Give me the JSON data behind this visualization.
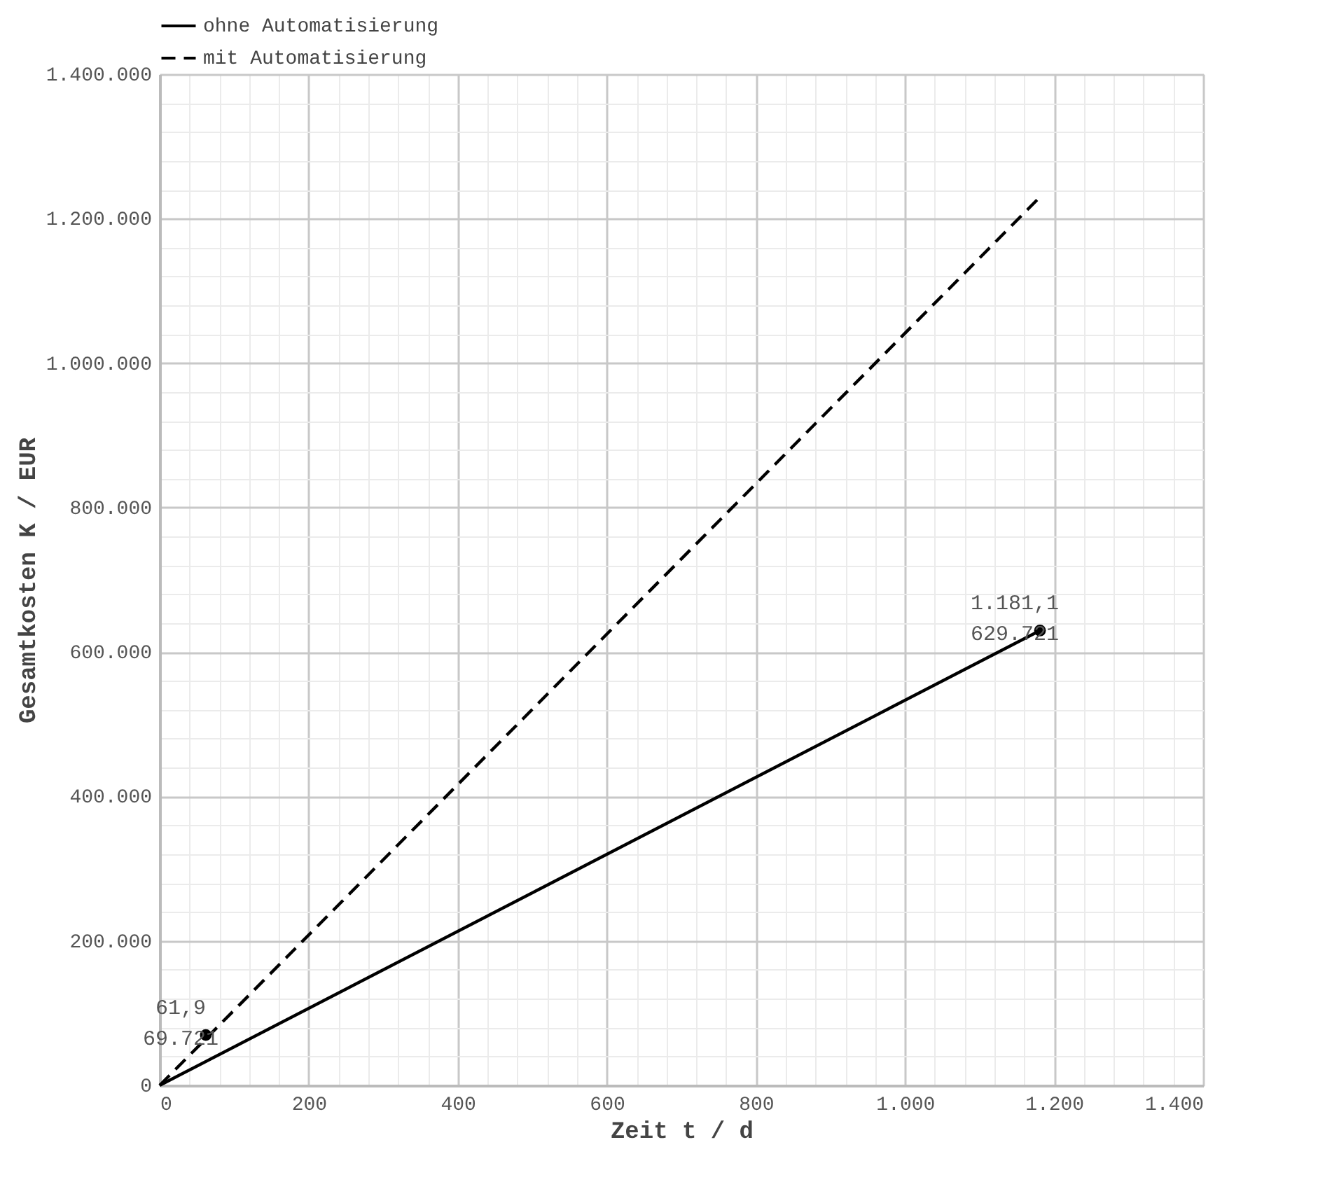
{
  "chart_data": {
    "type": "line",
    "xlabel": "Zeit t / d",
    "ylabel": "Gesamtkosten K / EUR",
    "series": [
      {
        "name": "ohne Automatisierung",
        "color": "#000000",
        "line_style": "solid",
        "x": [
          0,
          1181.1
        ],
        "values": [
          0,
          629721
        ]
      },
      {
        "name": "mit Automatisierung",
        "color": "#000000",
        "line_style": "dashed",
        "x": [
          0,
          1181.1
        ],
        "values": [
          0,
          1230000
        ]
      },
      {
        "type": "scatter",
        "color": "#000000",
        "marker": "circle",
        "x": [
          61.9,
          1181.1
        ],
        "values": [
          69721,
          629721
        ]
      }
    ],
    "annotations": [
      {
        "text": "61,9\n69.721",
        "x": 61.9,
        "y": 69721
      },
      {
        "text": "1.181,1\n629.721",
        "x": 1181.1,
        "y": 629721
      }
    ],
    "xlim": [
      0,
      1400
    ],
    "ylim": [
      0,
      1400000
    ],
    "xticks": [
      {
        "value": 0,
        "label": "0"
      },
      {
        "value": 40,
        "label": null
      },
      {
        "value": 80,
        "label": null
      },
      {
        "value": 120,
        "label": null
      },
      {
        "value": 160,
        "label": null
      },
      {
        "value": 200,
        "label": "200"
      },
      {
        "value": 240,
        "label": null
      },
      {
        "value": 280,
        "label": null
      },
      {
        "value": 320,
        "label": null
      },
      {
        "value": 360,
        "label": null
      },
      {
        "value": 400,
        "label": "400"
      },
      {
        "value": 440,
        "label": null
      },
      {
        "value": 480,
        "label": null
      },
      {
        "value": 520,
        "label": null
      },
      {
        "value": 560,
        "label": null
      },
      {
        "value": 600,
        "label": "600"
      },
      {
        "value": 640,
        "label": null
      },
      {
        "value": 680,
        "label": null
      },
      {
        "value": 720,
        "label": null
      },
      {
        "value": 760,
        "label": null
      },
      {
        "value": 800,
        "label": "800"
      },
      {
        "value": 840,
        "label": null
      },
      {
        "value": 880,
        "label": null
      },
      {
        "value": 920,
        "label": null
      },
      {
        "value": 960,
        "label": null
      },
      {
        "value": 1000,
        "label": "1.000"
      },
      {
        "value": 1040,
        "label": null
      },
      {
        "value": 1080,
        "label": null
      },
      {
        "value": 1120,
        "label": null
      },
      {
        "value": 1160,
        "label": null
      },
      {
        "value": 1200,
        "label": "1.200"
      },
      {
        "value": 1240,
        "label": null
      },
      {
        "value": 1280,
        "label": null
      },
      {
        "value": 1320,
        "label": null
      },
      {
        "value": 1360,
        "label": null
      },
      {
        "value": 1400,
        "label": "1.400"
      }
    ],
    "yticks": [
      {
        "value": 0,
        "label": "0"
      },
      {
        "value": 40000,
        "label": null
      },
      {
        "value": 80000,
        "label": null
      },
      {
        "value": 120000,
        "label": null
      },
      {
        "value": 160000,
        "label": null
      },
      {
        "value": 200000,
        "label": "200.000"
      },
      {
        "value": 240000,
        "label": null
      },
      {
        "value": 280000,
        "label": null
      },
      {
        "value": 320000,
        "label": null
      },
      {
        "value": 360000,
        "label": null
      },
      {
        "value": 400000,
        "label": "400.000"
      },
      {
        "value": 440000,
        "label": null
      },
      {
        "value": 480000,
        "label": null
      },
      {
        "value": 520000,
        "label": null
      },
      {
        "value": 560000,
        "label": null
      },
      {
        "value": 600000,
        "label": "600.000"
      },
      {
        "value": 640000,
        "label": null
      },
      {
        "value": 680000,
        "label": null
      },
      {
        "value": 720000,
        "label": null
      },
      {
        "value": 760000,
        "label": null
      },
      {
        "value": 800000,
        "label": "800.000"
      },
      {
        "value": 840000,
        "label": null
      },
      {
        "value": 880000,
        "label": null
      },
      {
        "value": 920000,
        "label": null
      },
      {
        "value": 960000,
        "label": null
      },
      {
        "value": 1000000,
        "label": "1.000.000"
      },
      {
        "value": 1040000,
        "label": null
      },
      {
        "value": 1080000,
        "label": null
      },
      {
        "value": 1120000,
        "label": null
      },
      {
        "value": 1160000,
        "label": null
      },
      {
        "value": 1200000,
        "label": "1.200.000"
      },
      {
        "value": 1240000,
        "label": null
      },
      {
        "value": 1280000,
        "label": null
      },
      {
        "value": 1320000,
        "label": null
      },
      {
        "value": 1360000,
        "label": null
      },
      {
        "value": 1400000,
        "label": "1.400.000"
      }
    ],
    "grid": true,
    "legend": "top"
  }
}
